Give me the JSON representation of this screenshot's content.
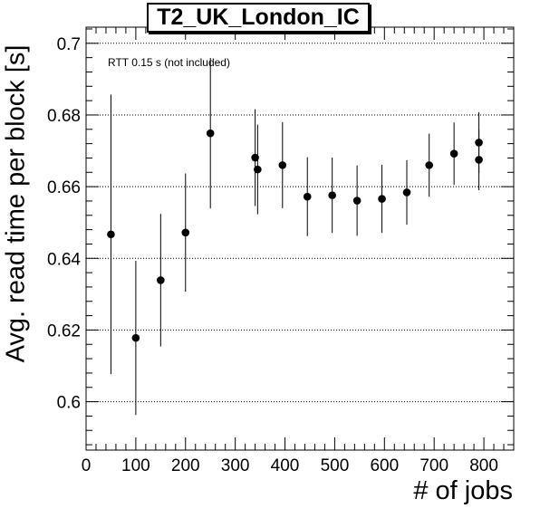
{
  "chart_data": {
    "type": "scatter",
    "title": "T2_UK_London_IC",
    "annotation": "RTT 0.15 s (not included)",
    "xlabel": "# of jobs",
    "ylabel": "Avg. read time per block [s]",
    "xlim": [
      0,
      860
    ],
    "ylim": [
      0.5865,
      0.7045
    ],
    "xticks": [
      0,
      100,
      200,
      300,
      400,
      500,
      600,
      700,
      800
    ],
    "yticks": [
      0.6,
      0.62,
      0.64,
      0.66,
      0.68,
      0.7
    ],
    "ytick_labels": [
      "0.6",
      "0.62",
      "0.64",
      "0.66",
      "0.68",
      "0.7"
    ],
    "grid": "horizontal-dotted",
    "points": [
      {
        "x": 50,
        "y": 0.6467,
        "err": 0.039
      },
      {
        "x": 100,
        "y": 0.6178,
        "err": 0.0215
      },
      {
        "x": 150,
        "y": 0.6339,
        "err": 0.0185
      },
      {
        "x": 200,
        "y": 0.6472,
        "err": 0.0165
      },
      {
        "x": 250,
        "y": 0.6749,
        "err": 0.021
      },
      {
        "x": 340,
        "y": 0.6681,
        "err": 0.0135
      },
      {
        "x": 345,
        "y": 0.6648,
        "err": 0.0125
      },
      {
        "x": 395,
        "y": 0.666,
        "err": 0.012
      },
      {
        "x": 445,
        "y": 0.6572,
        "err": 0.011
      },
      {
        "x": 495,
        "y": 0.6576,
        "err": 0.0105
      },
      {
        "x": 545,
        "y": 0.6561,
        "err": 0.0098
      },
      {
        "x": 595,
        "y": 0.6566,
        "err": 0.0095
      },
      {
        "x": 645,
        "y": 0.6584,
        "err": 0.009
      },
      {
        "x": 690,
        "y": 0.666,
        "err": 0.0088
      },
      {
        "x": 740,
        "y": 0.6692,
        "err": 0.0087
      },
      {
        "x": 790,
        "y": 0.6723,
        "err": 0.0085
      },
      {
        "x": 790,
        "y": 0.6675,
        "err": 0.0085
      }
    ],
    "colors": {
      "marker": "#000000",
      "axis": "#000000",
      "grid": "#000000"
    }
  }
}
